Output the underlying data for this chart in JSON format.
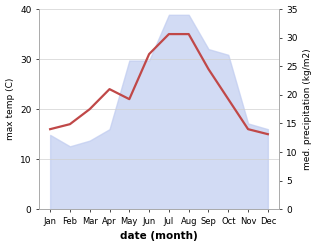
{
  "months": [
    "Jan",
    "Feb",
    "Mar",
    "Apr",
    "May",
    "Jun",
    "Jul",
    "Aug",
    "Sep",
    "Oct",
    "Nov",
    "Dec"
  ],
  "temp": [
    16,
    17,
    20,
    24,
    22,
    31,
    35,
    35,
    28,
    22,
    16,
    15
  ],
  "precip": [
    13,
    11,
    12,
    14,
    26,
    26,
    34,
    34,
    28,
    27,
    15,
    14
  ],
  "temp_ylim": [
    0,
    40
  ],
  "precip_ylim": [
    0,
    35
  ],
  "temp_yticks": [
    0,
    10,
    20,
    30,
    40
  ],
  "precip_yticks": [
    0,
    5,
    10,
    15,
    20,
    25,
    30,
    35
  ],
  "fill_color": "#c0ccf0",
  "fill_alpha": 0.7,
  "line_color": "#c04848",
  "line_width": 1.6,
  "ylabel_left": "max temp (C)",
  "ylabel_right": "med. precipitation (kg/m2)",
  "xlabel": "date (month)",
  "background_color": "#ffffff",
  "grid_color": "#d0d0d0"
}
